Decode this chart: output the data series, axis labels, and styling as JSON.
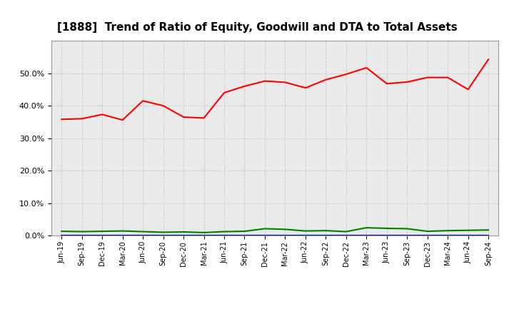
{
  "title": "[1888]  Trend of Ratio of Equity, Goodwill and DTA to Total Assets",
  "labels": [
    "Jun-19",
    "Sep-19",
    "Dec-19",
    "Mar-20",
    "Jun-20",
    "Sep-20",
    "Dec-20",
    "Mar-21",
    "Jun-21",
    "Sep-21",
    "Dec-21",
    "Mar-22",
    "Jun-22",
    "Sep-22",
    "Dec-22",
    "Mar-23",
    "Jun-23",
    "Sep-23",
    "Dec-23",
    "Mar-24",
    "Jun-24",
    "Sep-24"
  ],
  "equity": [
    0.358,
    0.36,
    0.373,
    0.356,
    0.415,
    0.4,
    0.365,
    0.362,
    0.44,
    0.46,
    0.476,
    0.472,
    0.455,
    0.48,
    0.497,
    0.517,
    0.468,
    0.473,
    0.487,
    0.487,
    0.45,
    0.543
  ],
  "goodwill": [
    0.0,
    0.0,
    0.0,
    0.0,
    0.0,
    0.0,
    0.0,
    0.0,
    0.0,
    0.0,
    0.0,
    0.0,
    0.0,
    0.0,
    0.0,
    0.0,
    0.0,
    0.0,
    0.0,
    0.0,
    0.0,
    0.0
  ],
  "dta": [
    0.013,
    0.012,
    0.013,
    0.014,
    0.012,
    0.01,
    0.011,
    0.009,
    0.012,
    0.013,
    0.021,
    0.019,
    0.014,
    0.015,
    0.012,
    0.024,
    0.022,
    0.021,
    0.013,
    0.015,
    0.016,
    0.017
  ],
  "equity_color": "#FF0000",
  "goodwill_color": "#0000CD",
  "dta_color": "#008000",
  "bg_color": "#FFFFFF",
  "plot_bg_color": "#EAEAEA",
  "grid_color": "#BBBBBB",
  "ylim": [
    0.0,
    0.6
  ],
  "yticks": [
    0.0,
    0.1,
    0.2,
    0.3,
    0.4,
    0.5
  ],
  "linewidth": 1.5,
  "title_fontsize": 11
}
